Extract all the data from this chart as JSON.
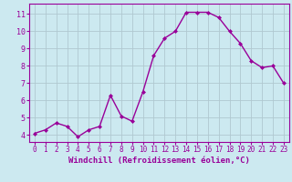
{
  "x": [
    0,
    1,
    2,
    3,
    4,
    5,
    6,
    7,
    8,
    9,
    10,
    11,
    12,
    13,
    14,
    15,
    16,
    17,
    18,
    19,
    20,
    21,
    22,
    23
  ],
  "y": [
    4.1,
    4.3,
    4.7,
    4.5,
    3.9,
    4.3,
    4.5,
    6.3,
    5.1,
    4.8,
    6.5,
    8.6,
    9.6,
    10.0,
    11.1,
    11.1,
    11.1,
    10.8,
    10.0,
    9.3,
    8.3,
    7.9,
    8.0,
    7.0
  ],
  "line_color": "#990099",
  "marker": "D",
  "marker_size": 2,
  "background_color": "#cce9f0",
  "grid_color": "#b0c8d0",
  "xlabel": "Windchill (Refroidissement éolien,°C)",
  "ylabel_ticks": [
    4,
    5,
    6,
    7,
    8,
    9,
    10,
    11
  ],
  "xlim": [
    -0.5,
    23.5
  ],
  "ylim": [
    3.6,
    11.6
  ],
  "xtick_labels": [
    "0",
    "1",
    "2",
    "3",
    "4",
    "5",
    "6",
    "7",
    "8",
    "9",
    "10",
    "11",
    "12",
    "13",
    "14",
    "15",
    "16",
    "17",
    "18",
    "19",
    "20",
    "21",
    "22",
    "23"
  ],
  "tick_color": "#990099",
  "tick_fontsize": 5.5,
  "xlabel_fontsize": 6.5,
  "linewidth": 1.0
}
